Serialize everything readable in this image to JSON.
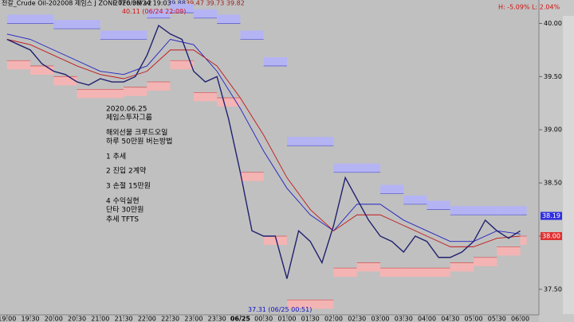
{
  "chart_data": {
    "type": "line",
    "title": "전갈_Crude Oil-202008 제임스 J ZONE TF6 3M v2",
    "subtitle": "2020/06/24 19:03",
    "header_values": [
      "39.88",
      "39.47 39.73 39.82"
    ],
    "range_info": "H: -5.09%  L: 2.04%",
    "annotations": [
      {
        "text": "40.11 (06/24 22:09)",
        "x": 3.15,
        "y": 40.11,
        "color": "#d01010"
      },
      {
        "text": "37.31 (06/25 00:51)",
        "x": 5.85,
        "y": 37.31,
        "color": "#1010c0"
      }
    ],
    "note_lines": [
      "2020.06.25",
      "제임스투자그룹",
      "해외선물 크루드오일",
      "하루 50만원 버는방법",
      "1 추세",
      "2 진입 2계약",
      "3 손절 15만원",
      "4 수익실현",
      "단타 30만원",
      "추세 TFTS"
    ],
    "price_tags": [
      {
        "value": 38.19,
        "color": "#3030e0"
      },
      {
        "value": {
          "value": 38,
          "label": "38.00"
        },
        "color": "#e03030"
      }
    ],
    "xlim": [
      -0.15,
      11.4
    ],
    "ylim": [
      37.26,
      40.22
    ],
    "xticks": [
      {
        "value": 0,
        "label": "19:00"
      },
      {
        "value": 0.5,
        "label": "19:30"
      },
      {
        "value": 1,
        "label": "20:00"
      },
      {
        "value": 1.5,
        "label": "20:30"
      },
      {
        "value": 2,
        "label": "21:00"
      },
      {
        "value": 2.5,
        "label": "21:30"
      },
      {
        "value": 3,
        "label": "22:00"
      },
      {
        "value": 3.5,
        "label": "22:30"
      },
      {
        "value": 4,
        "label": "23:00"
      },
      {
        "value": 4.5,
        "label": "23:30"
      },
      {
        "value": 5,
        "label": "06/25"
      },
      {
        "value": 5.5,
        "label": "00:30"
      },
      {
        "value": 6,
        "label": "01:00"
      },
      {
        "value": 6.5,
        "label": "01:30"
      },
      {
        "value": 7,
        "label": "02:00"
      },
      {
        "value": 7.5,
        "label": "02:30"
      },
      {
        "value": 8,
        "label": "03:00"
      },
      {
        "value": 8.5,
        "label": "03:30"
      },
      {
        "value": 9,
        "label": "04:00"
      },
      {
        "value": 9.5,
        "label": "04:30"
      },
      {
        "value": 10,
        "label": "05:00"
      },
      {
        "value": 10.5,
        "label": "05:30"
      },
      {
        "value": 11,
        "label": "06:00"
      }
    ],
    "yticks": [
      {
        "value": 40,
        "label": "40.00"
      },
      {
        "value": 39.5,
        "label": "39.50"
      },
      {
        "value": 39,
        "label": "39.00"
      },
      {
        "value": 38.5,
        "label": "38.50"
      },
      {
        "value": 38,
        "label": "38.00"
      },
      {
        "value": 37.5,
        "label": "37.50"
      }
    ],
    "series": [
      {
        "name": "upper band",
        "style": "band-up",
        "color": "#b4b4f4",
        "x": [
          0,
          0.5,
          1,
          1.5,
          2,
          2.5,
          3,
          3.5,
          4,
          4.5,
          5,
          5.5,
          6,
          6.5,
          7,
          7.5,
          8,
          8.5,
          9,
          9.5,
          10,
          10.5,
          11
        ],
        "values": [
          40.0,
          40.0,
          39.95,
          39.95,
          39.85,
          39.85,
          40.05,
          40.1,
          40.05,
          40.0,
          39.85,
          39.6,
          38.85,
          38.85,
          38.6,
          38.6,
          38.4,
          38.3,
          38.25,
          38.2,
          38.2,
          38.2,
          38.2
        ]
      },
      {
        "name": "lower band",
        "style": "band-down",
        "color": "#f4b4b4",
        "x": [
          0,
          0.5,
          1,
          1.5,
          2,
          2.5,
          3,
          3.5,
          4,
          4.5,
          5,
          5.5,
          6,
          6.5,
          7,
          7.5,
          8,
          8.5,
          9,
          9.5,
          10,
          10.5,
          11
        ],
        "values": [
          39.65,
          39.6,
          39.5,
          39.38,
          39.38,
          39.4,
          39.45,
          39.65,
          39.35,
          39.3,
          38.6,
          38.0,
          37.4,
          37.4,
          37.7,
          37.75,
          37.7,
          37.7,
          37.7,
          37.75,
          37.8,
          37.9,
          38.0
        ]
      },
      {
        "name": "slow ma",
        "style": "line",
        "color": "#2020c0",
        "x": [
          0,
          0.5,
          1,
          1.5,
          2,
          2.5,
          3,
          3.5,
          4,
          4.5,
          5,
          5.5,
          6,
          6.5,
          7,
          7.5,
          8,
          8.5,
          9,
          9.5,
          10,
          10.5,
          11
        ],
        "values": [
          39.9,
          39.85,
          39.75,
          39.65,
          39.55,
          39.52,
          39.6,
          39.85,
          39.8,
          39.55,
          39.2,
          38.8,
          38.45,
          38.2,
          38.05,
          38.3,
          38.3,
          38.15,
          38.05,
          37.95,
          37.95,
          38.05,
          38.02
        ]
      },
      {
        "name": "fast ma",
        "style": "line",
        "color": "#c01818",
        "x": [
          0,
          0.5,
          1,
          1.5,
          2,
          2.5,
          3,
          3.5,
          4,
          4.5,
          5,
          5.5,
          6,
          6.5,
          7,
          7.5,
          8,
          8.5,
          9,
          9.5,
          10,
          10.5,
          11
        ],
        "values": [
          39.85,
          39.8,
          39.7,
          39.6,
          39.52,
          39.48,
          39.55,
          39.75,
          39.75,
          39.6,
          39.3,
          38.95,
          38.55,
          38.25,
          38.05,
          38.2,
          38.2,
          38.1,
          38.0,
          37.9,
          37.9,
          37.98,
          38.0
        ]
      },
      {
        "name": "price",
        "style": "line",
        "color": "#202070",
        "x": [
          0,
          0.25,
          0.5,
          0.75,
          1,
          1.25,
          1.5,
          1.75,
          2,
          2.25,
          2.5,
          2.75,
          3,
          3.25,
          3.5,
          3.75,
          4,
          4.25,
          4.5,
          4.75,
          5,
          5.25,
          5.5,
          5.75,
          6,
          6.25,
          6.5,
          6.75,
          7,
          7.25,
          7.5,
          7.75,
          8,
          8.25,
          8.5,
          8.75,
          9,
          9.25,
          9.5,
          9.75,
          10,
          10.25,
          10.5,
          10.75,
          11
        ],
        "values": [
          39.85,
          39.8,
          39.75,
          39.62,
          39.55,
          39.52,
          39.45,
          39.42,
          39.48,
          39.45,
          39.45,
          39.5,
          39.7,
          39.98,
          39.9,
          39.85,
          39.55,
          39.45,
          39.5,
          39.1,
          38.6,
          38.05,
          38.0,
          38.0,
          37.6,
          38.05,
          37.95,
          37.75,
          38.1,
          38.55,
          38.35,
          38.15,
          38.0,
          37.95,
          37.85,
          38.0,
          37.95,
          37.8,
          37.8,
          37.85,
          37.95,
          38.15,
          38.05,
          37.98,
          38.05
        ]
      }
    ]
  }
}
